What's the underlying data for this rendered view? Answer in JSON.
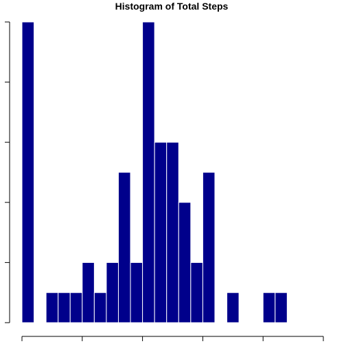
{
  "chart_data": {
    "type": "histogram",
    "title": "Histogram of Total Steps",
    "xlabel": "",
    "ylabel": "",
    "bin_width": 1000,
    "xlim": [
      0,
      25000
    ],
    "ylim": [
      0,
      10
    ],
    "x_ticks": [
      0,
      5000,
      10000,
      15000,
      20000,
      25000
    ],
    "y_ticks": [
      0,
      2,
      4,
      6,
      8,
      10
    ],
    "bins": [
      {
        "start": 0,
        "end": 1000,
        "count": 10
      },
      {
        "start": 1000,
        "end": 2000,
        "count": 0
      },
      {
        "start": 2000,
        "end": 3000,
        "count": 1
      },
      {
        "start": 3000,
        "end": 4000,
        "count": 1
      },
      {
        "start": 4000,
        "end": 5000,
        "count": 1
      },
      {
        "start": 5000,
        "end": 6000,
        "count": 2
      },
      {
        "start": 6000,
        "end": 7000,
        "count": 1
      },
      {
        "start": 7000,
        "end": 8000,
        "count": 2
      },
      {
        "start": 8000,
        "end": 9000,
        "count": 5
      },
      {
        "start": 9000,
        "end": 10000,
        "count": 2
      },
      {
        "start": 10000,
        "end": 11000,
        "count": 10
      },
      {
        "start": 11000,
        "end": 12000,
        "count": 6
      },
      {
        "start": 12000,
        "end": 13000,
        "count": 6
      },
      {
        "start": 13000,
        "end": 14000,
        "count": 4
      },
      {
        "start": 14000,
        "end": 15000,
        "count": 2
      },
      {
        "start": 15000,
        "end": 16000,
        "count": 5
      },
      {
        "start": 16000,
        "end": 17000,
        "count": 0
      },
      {
        "start": 17000,
        "end": 18000,
        "count": 1
      },
      {
        "start": 18000,
        "end": 19000,
        "count": 0
      },
      {
        "start": 19000,
        "end": 20000,
        "count": 0
      },
      {
        "start": 20000,
        "end": 21000,
        "count": 1
      },
      {
        "start": 21000,
        "end": 22000,
        "count": 1
      }
    ],
    "bar_color": "#00008B",
    "bar_border_color": "#FFFFFF",
    "grid": false,
    "legend": "none"
  }
}
